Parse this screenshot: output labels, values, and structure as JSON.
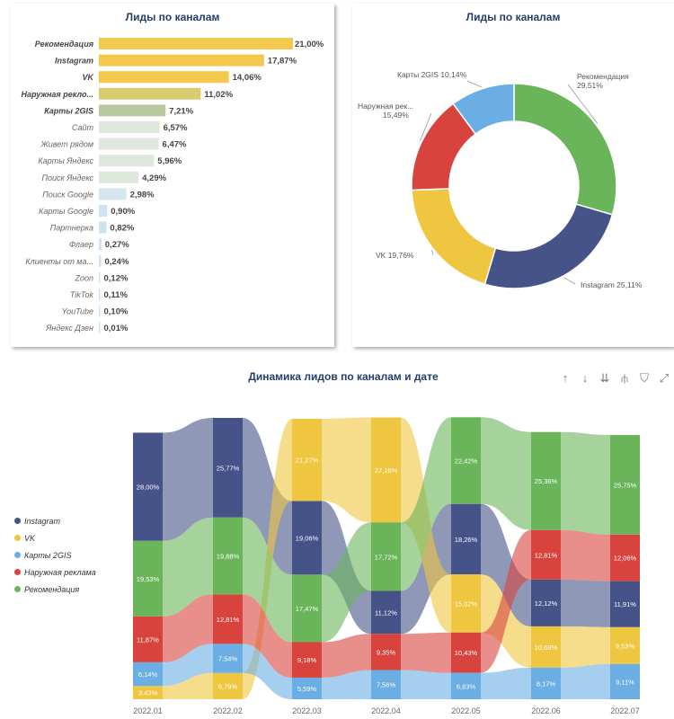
{
  "chart_data": [
    {
      "type": "bar",
      "orientation": "horizontal",
      "title": "Лиды по каналам",
      "categories": [
        "Рекомендация",
        "Instagram",
        "VK",
        "Наружная рекло...",
        "Карты 2GIS",
        "Сайт",
        "Живет рядом",
        "Карты Яндекс",
        "Поиск Яндекс",
        "Поиск Google",
        "Карты Google",
        "Партнерка",
        "Флаер",
        "Клиенты от ма...",
        "Zoon",
        "TikTok",
        "YouTube",
        "Яндекс Дзен"
      ],
      "values": [
        21.0,
        17.87,
        14.06,
        11.02,
        7.21,
        6.57,
        6.47,
        5.96,
        4.29,
        2.98,
        0.9,
        0.82,
        0.27,
        0.24,
        0.12,
        0.11,
        0.1,
        0.01
      ],
      "labels": [
        "21,00%",
        "17,87%",
        "14,06%",
        "11,02%",
        "7,21%",
        "6,57%",
        "6,47%",
        "5,96%",
        "4,29%",
        "2,98%",
        "0,90%",
        "0,82%",
        "0,27%",
        "0,24%",
        "0,12%",
        "0,11%",
        "0,10%",
        "0,01%"
      ],
      "colors": [
        "#f2c94c",
        "#f2c94c",
        "#f2c94c",
        "#d8cc6e",
        "#b8c9a0",
        "#dfe8dc",
        "#dfe8dc",
        "#dfe8dc",
        "#dfe8dc",
        "#d6e6ee",
        "#cde3f0",
        "#cde3f0",
        "#cde3f0",
        "#cde3f0",
        "#cde3f0",
        "#cde3f0",
        "#cde3f0",
        "#cde3f0"
      ],
      "bold": [
        true,
        true,
        true,
        true,
        true,
        false,
        false,
        false,
        false,
        false,
        false,
        false,
        false,
        false,
        false,
        false,
        false,
        false
      ],
      "xlim": [
        0,
        21.0
      ]
    },
    {
      "type": "pie",
      "variant": "donut",
      "title": "Лиды по каналам",
      "slices": [
        {
          "name": "Рекомендация",
          "value": 29.51,
          "label": "Рекомендация",
          "pct": "29,51%",
          "color": "#6ab45a"
        },
        {
          "name": "Instagram",
          "value": 25.11,
          "label": "Instagram 25,11%",
          "pct": "",
          "color": "#465389"
        },
        {
          "name": "VK",
          "value": 19.76,
          "label": "VK 19,76%",
          "pct": "",
          "color": "#efc63f"
        },
        {
          "name": "Наружная рек...",
          "value": 15.49,
          "label": "Наружная рек...",
          "pct": "15,49%",
          "color": "#d9433e"
        },
        {
          "name": "Карты 2GIS",
          "value": 10.14,
          "label": "Карты 2GIS 10,14%",
          "pct": "",
          "color": "#6aaee3"
        }
      ]
    },
    {
      "type": "area",
      "variant": "ribbon",
      "title": "Динамика лидов по каналам и дате",
      "categories": [
        "2022.01",
        "2022.02",
        "2022.03",
        "2022.04",
        "2022.05",
        "2022.06",
        "2022.07"
      ],
      "legend_position": "left",
      "series": [
        {
          "name": "Instagram",
          "color": "#465389",
          "values": [
            28.0,
            25.77,
            19.06,
            11.12,
            18.26,
            12.12,
            11.91
          ],
          "labels": [
            "28,00%",
            "25,77%",
            "19,06%",
            "11,12%",
            "18,26%",
            "12,12%",
            "11,91%"
          ]
        },
        {
          "name": "VK",
          "color": "#efc63f",
          "values": [
            3.43,
            6.79,
            21.27,
            27.16,
            15.02,
            10.68,
            9.53
          ],
          "labels": [
            "3,43%",
            "6,79%",
            "21,27%",
            "27,16%",
            "15,02%",
            "10,68%",
            "9,53%"
          ]
        },
        {
          "name": "Карты 2GIS",
          "color": "#6aaee3",
          "values": [
            6.14,
            7.54,
            5.59,
            7.56,
            6.83,
            8.17,
            9.11
          ],
          "labels": [
            "6,14%",
            "7,54%",
            "5,59%",
            "7,56%",
            "6,83%",
            "8,17%",
            "9,11%"
          ]
        },
        {
          "name": "Наружная реклама",
          "color": "#d9433e",
          "values": [
            11.87,
            12.81,
            9.18,
            9.35,
            10.43,
            12.81,
            12.06
          ],
          "labels": [
            "11,87%",
            "12,81%",
            "9,18%",
            "9,35%",
            "10,43%",
            "12,81%",
            "12,06%"
          ]
        },
        {
          "name": "Рекомендация",
          "color": "#6ab45a",
          "values": [
            19.53,
            19.88,
            17.47,
            17.72,
            22.42,
            25.36,
            25.75
          ],
          "labels": [
            "19,53%",
            "19,88%",
            "17,47%",
            "17,72%",
            "22,42%",
            "25,36%",
            "25,75%"
          ]
        }
      ]
    }
  ],
  "toolbar": {
    "icons": [
      "arrow-up-icon",
      "arrow-down-icon",
      "double-arrow-down-icon",
      "expand-hierarchy-icon",
      "filter-icon",
      "focus-mode-icon"
    ],
    "glyphs": [
      "↑",
      "↓",
      "⇊",
      "⫛",
      "⛉",
      "⤢"
    ]
  }
}
